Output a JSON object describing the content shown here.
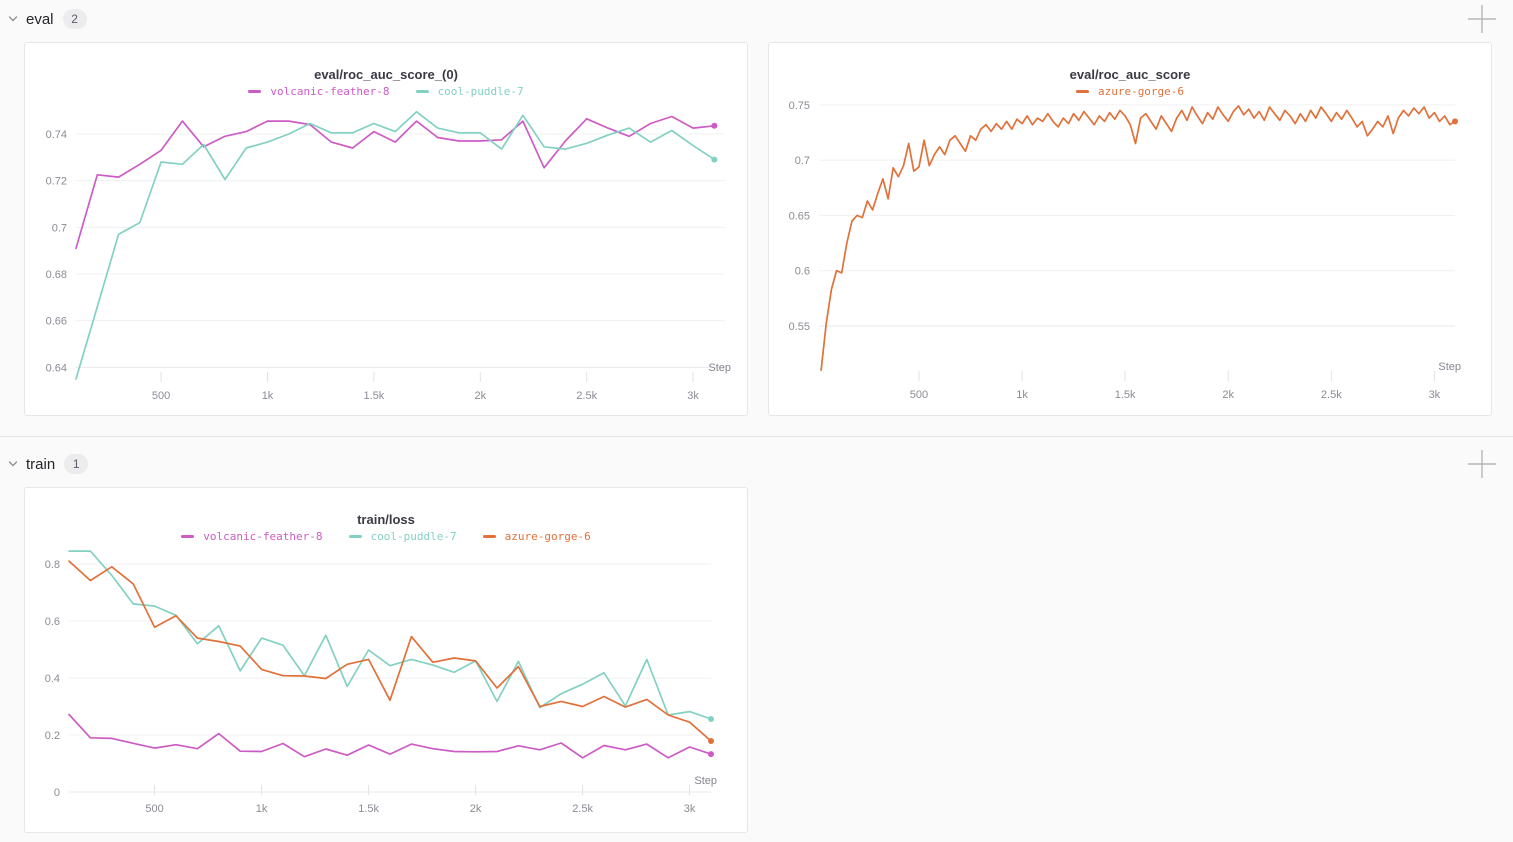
{
  "page": {
    "background": "#fafafa"
  },
  "sections": [
    {
      "label": "eval",
      "count": "2"
    },
    {
      "label": "train",
      "count": "1"
    }
  ],
  "runs": [
    {
      "name": "volcanic-feather-8",
      "color": "#cd5bc5"
    },
    {
      "name": "cool-puddle-7",
      "color": "#83d1c2"
    },
    {
      "name": "azure-gorge-6",
      "color": "#e0713a"
    }
  ],
  "chart_data": [
    {
      "type": "line",
      "section": "eval",
      "title": "eval/roc_auc_score_(0)",
      "xlabel": "Step",
      "grid": "horizontal",
      "legend_position": "top-center",
      "xlim": [
        100,
        3150
      ],
      "ylim": [
        0.635,
        0.7507
      ],
      "x_tick_values": [
        500,
        1000,
        1500,
        2000,
        2500,
        3000
      ],
      "x_tick_labels": [
        "500",
        "1k",
        "1.5k",
        "2k",
        "2.5k",
        "3k"
      ],
      "y_tick_values": [
        0.64,
        0.66,
        0.68,
        0.7,
        0.72,
        0.74
      ],
      "y_tick_labels": [
        "0.64",
        "0.66",
        "0.68",
        "0.7",
        "0.72",
        "0.74"
      ],
      "series": [
        {
          "name": "volcanic-feather-8",
          "color": "#cd5bc5",
          "end_dot": true,
          "x_start": 100,
          "x_step": 100,
          "values": [
            0.691,
            0.7225,
            0.7215,
            0.727,
            0.733,
            0.7455,
            0.7345,
            0.739,
            0.741,
            0.7455,
            0.7455,
            0.744,
            0.7365,
            0.734,
            0.741,
            0.7365,
            0.7455,
            0.7385,
            0.737,
            0.737,
            0.7375,
            0.7455,
            0.7255,
            0.737,
            0.7465,
            0.7425,
            0.739,
            0.7445,
            0.7475,
            0.7425,
            0.7435
          ]
        },
        {
          "name": "cool-puddle-7",
          "color": "#83d1c2",
          "end_dot": true,
          "x_start": 100,
          "x_step": 100,
          "values": [
            0.635,
            0.666,
            0.697,
            0.702,
            0.728,
            0.727,
            0.7355,
            0.7205,
            0.734,
            0.7365,
            0.74,
            0.7445,
            0.7405,
            0.7405,
            0.7445,
            0.741,
            0.7495,
            0.7425,
            0.7405,
            0.7405,
            0.7335,
            0.748,
            0.7345,
            0.7335,
            0.736,
            0.7395,
            0.7425,
            0.7365,
            0.7415,
            0.735,
            0.729
          ]
        }
      ]
    },
    {
      "type": "line",
      "section": "eval",
      "title": "eval/roc_auc_score",
      "xlabel": "Step",
      "grid": "horizontal",
      "legend_position": "top-center",
      "xlim": [
        15,
        3100
      ],
      "ylim": [
        0.503,
        0.7625
      ],
      "x_tick_values": [
        500,
        1000,
        1500,
        2000,
        2500,
        3000
      ],
      "x_tick_labels": [
        "500",
        "1k",
        "1.5k",
        "2k",
        "2.5k",
        "3k"
      ],
      "y_tick_values": [
        0.55,
        0.6,
        0.65,
        0.7,
        0.75
      ],
      "y_tick_labels": [
        "0.55",
        "0.6",
        "0.65",
        "0.7",
        "0.75"
      ],
      "series": [
        {
          "name": "azure-gorge-6",
          "color": "#e0713a",
          "end_dot": true,
          "x_start": 25,
          "x_step": 25,
          "values": [
            0.51,
            0.552,
            0.583,
            0.6,
            0.598,
            0.625,
            0.645,
            0.65,
            0.648,
            0.663,
            0.655,
            0.67,
            0.683,
            0.665,
            0.693,
            0.685,
            0.695,
            0.715,
            0.69,
            0.694,
            0.718,
            0.695,
            0.705,
            0.712,
            0.705,
            0.718,
            0.722,
            0.715,
            0.708,
            0.722,
            0.718,
            0.728,
            0.732,
            0.726,
            0.733,
            0.728,
            0.735,
            0.728,
            0.737,
            0.733,
            0.74,
            0.732,
            0.738,
            0.735,
            0.742,
            0.735,
            0.73,
            0.738,
            0.733,
            0.742,
            0.736,
            0.744,
            0.738,
            0.732,
            0.74,
            0.735,
            0.743,
            0.737,
            0.745,
            0.74,
            0.732,
            0.715,
            0.738,
            0.742,
            0.735,
            0.728,
            0.74,
            0.733,
            0.726,
            0.738,
            0.745,
            0.736,
            0.748,
            0.74,
            0.733,
            0.743,
            0.737,
            0.748,
            0.741,
            0.735,
            0.744,
            0.749,
            0.741,
            0.746,
            0.738,
            0.744,
            0.736,
            0.748,
            0.742,
            0.736,
            0.745,
            0.74,
            0.733,
            0.742,
            0.735,
            0.745,
            0.738,
            0.748,
            0.742,
            0.735,
            0.743,
            0.737,
            0.745,
            0.738,
            0.73,
            0.735,
            0.722,
            0.728,
            0.735,
            0.73,
            0.74,
            0.724,
            0.738,
            0.745,
            0.74,
            0.747,
            0.742,
            0.748,
            0.738,
            0.743,
            0.735,
            0.74,
            0.732,
            0.735
          ]
        }
      ]
    },
    {
      "type": "line",
      "section": "train",
      "title": "train/loss",
      "xlabel": "Step",
      "grid": "horizontal",
      "legend_position": "top-center",
      "xlim": [
        100,
        3100
      ],
      "ylim": [
        0,
        0.87
      ],
      "x_tick_values": [
        500,
        1000,
        1500,
        2000,
        2500,
        3000
      ],
      "x_tick_labels": [
        "500",
        "1k",
        "1.5k",
        "2k",
        "2.5k",
        "3k"
      ],
      "y_tick_values": [
        0,
        0.2,
        0.4,
        0.6,
        0.8
      ],
      "y_tick_labels": [
        "0",
        "0.2",
        "0.4",
        "0.6",
        "0.8"
      ],
      "series": [
        {
          "name": "volcanic-feather-8",
          "color": "#cd5bc5",
          "end_dot": true,
          "x_start": 100,
          "x_step": 100,
          "values": [
            0.272,
            0.19,
            0.188,
            0.171,
            0.154,
            0.166,
            0.152,
            0.205,
            0.143,
            0.142,
            0.17,
            0.124,
            0.151,
            0.129,
            0.165,
            0.133,
            0.168,
            0.152,
            0.142,
            0.141,
            0.142,
            0.162,
            0.148,
            0.172,
            0.12,
            0.163,
            0.148,
            0.168,
            0.12,
            0.158,
            0.133
          ]
        },
        {
          "name": "cool-puddle-7",
          "color": "#83d1c2",
          "end_dot": true,
          "x_start": 100,
          "x_step": 100,
          "values": [
            0.845,
            0.845,
            0.76,
            0.66,
            0.652,
            0.62,
            0.52,
            0.583,
            0.425,
            0.54,
            0.515,
            0.408,
            0.55,
            0.37,
            0.498,
            0.443,
            0.465,
            0.445,
            0.42,
            0.46,
            0.318,
            0.458,
            0.296,
            0.345,
            0.378,
            0.418,
            0.302,
            0.465,
            0.27,
            0.282,
            0.256
          ]
        },
        {
          "name": "azure-gorge-6",
          "color": "#e0713a",
          "end_dot": true,
          "x_start": 100,
          "x_step": 100,
          "values": [
            0.81,
            0.742,
            0.79,
            0.73,
            0.578,
            0.618,
            0.54,
            0.528,
            0.512,
            0.43,
            0.408,
            0.407,
            0.398,
            0.448,
            0.465,
            0.322,
            0.545,
            0.455,
            0.47,
            0.46,
            0.365,
            0.44,
            0.3,
            0.318,
            0.3,
            0.335,
            0.298,
            0.325,
            0.27,
            0.245,
            0.179
          ]
        }
      ]
    }
  ]
}
